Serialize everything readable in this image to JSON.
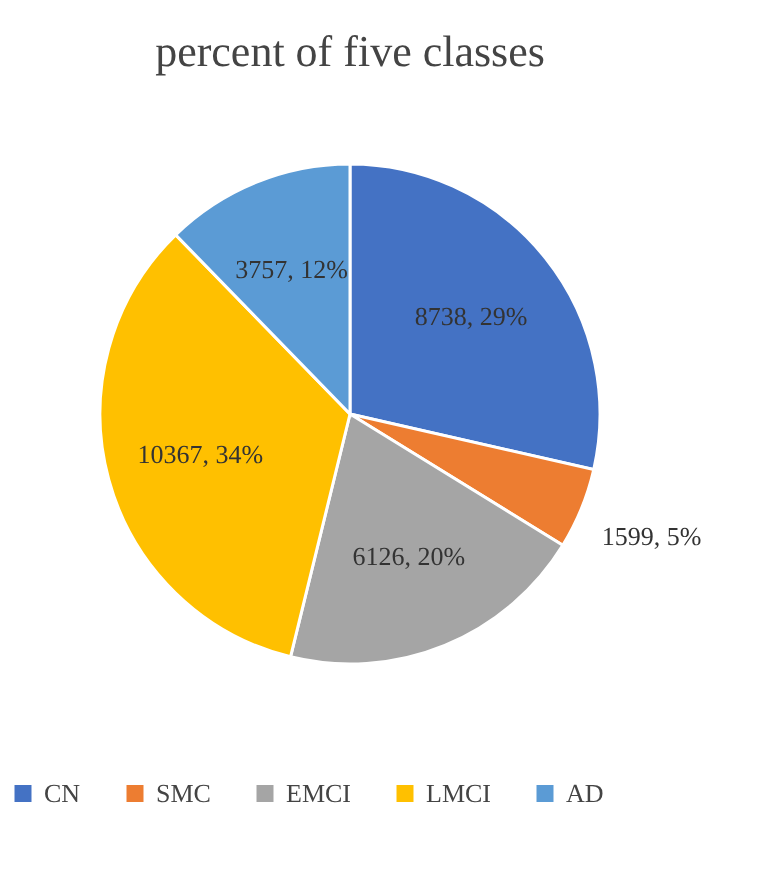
{
  "chart_data": {
    "type": "pie",
    "title": "percent of five classes",
    "categories": [
      "CN",
      "SMC",
      "EMCI",
      "LMCI",
      "AD"
    ],
    "values": [
      8738,
      1599,
      6126,
      10367,
      3757
    ],
    "colors": [
      "#4472c4",
      "#ed7d31",
      "#a5a5a5",
      "#ffc000",
      "#5b9bd5"
    ],
    "value_labels": [
      "8738, 29%",
      "1599, 5%",
      "6126, 20%",
      "10367, 34%",
      "3757, 12%"
    ],
    "legend": "bottom"
  }
}
